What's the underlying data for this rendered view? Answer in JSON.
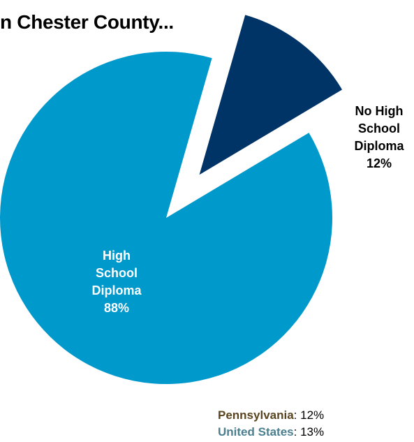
{
  "chart_data": {
    "type": "pie",
    "title": "n Chester County...",
    "slices": [
      {
        "label_lines": [
          "No High",
          "School",
          "Diploma"
        ],
        "value": 12,
        "value_label": "12%",
        "color": "#003366",
        "label_color": "#000000",
        "exploded": true
      },
      {
        "label_lines": [
          "High",
          "School",
          "Diploma"
        ],
        "value": 88,
        "value_label": "88%",
        "color": "#0099cc",
        "label_color": "#ffffff",
        "exploded": false
      }
    ]
  },
  "comparison": [
    {
      "name": "Pennsylvania",
      "value": "12%",
      "color": "#5a4420"
    },
    {
      "name": "United States",
      "value": "13%",
      "color": "#4b7f8f"
    }
  ]
}
